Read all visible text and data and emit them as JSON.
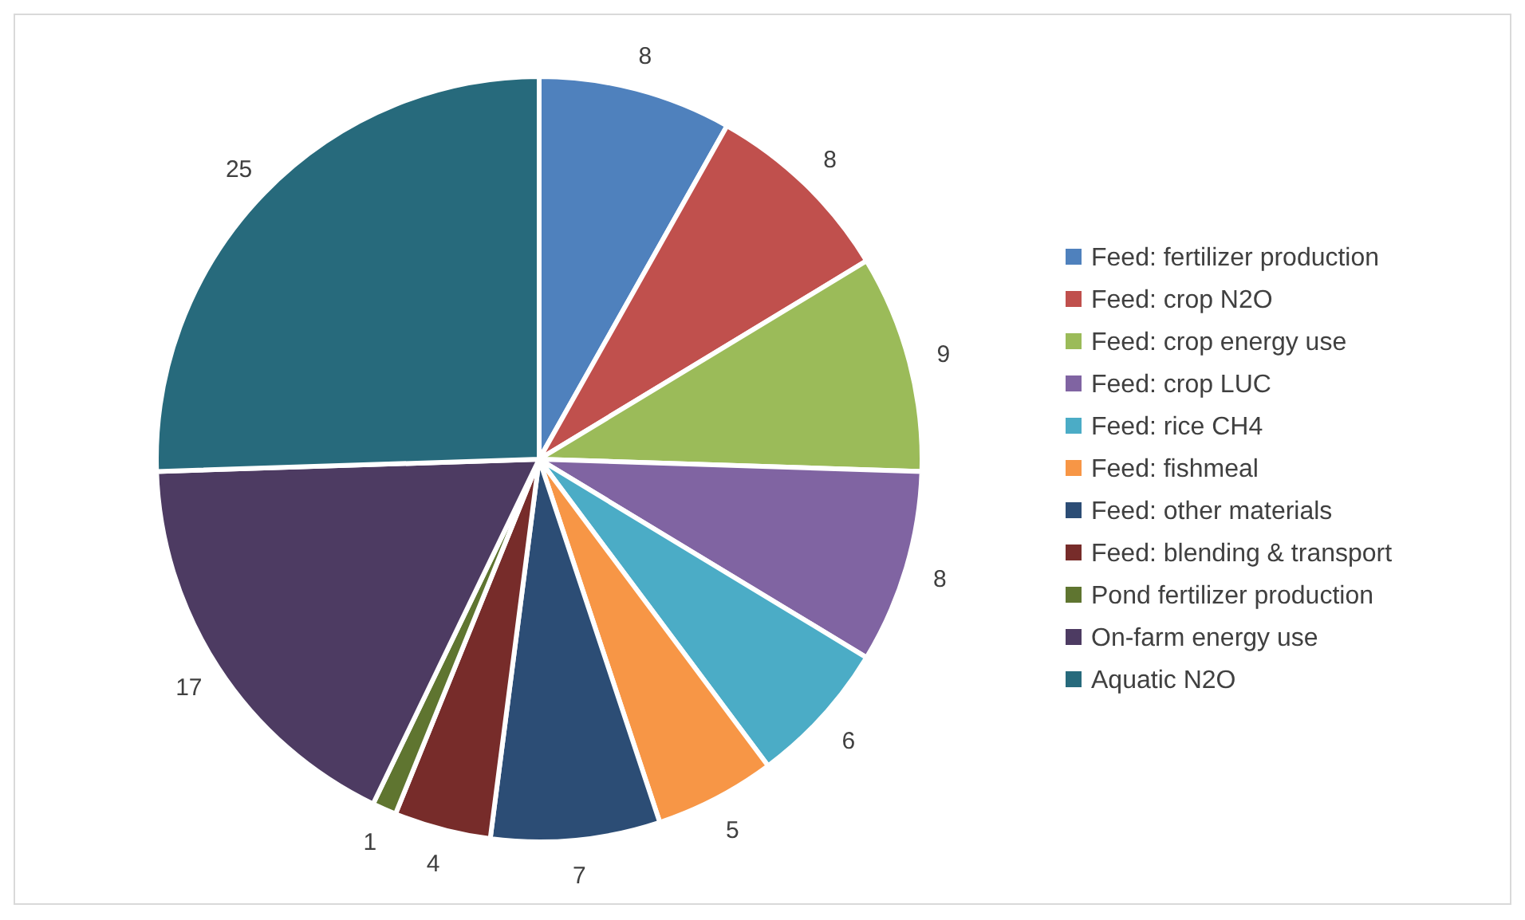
{
  "chart_data": {
    "type": "pie",
    "categories": [
      "Feed: fertilizer production",
      "Feed: crop N2O",
      "Feed: crop energy use",
      "Feed: crop LUC",
      "Feed: rice CH4",
      "Feed: fishmeal",
      "Feed: other materials",
      "Feed: blending & transport",
      "Pond fertilizer production",
      "On-farm energy use",
      "Aquatic N2O"
    ],
    "values": [
      8,
      8,
      9,
      8,
      6,
      5,
      7,
      4,
      1,
      17,
      25
    ],
    "colors": [
      "#4f81bd",
      "#c0504d",
      "#9bbb59",
      "#8064a2",
      "#4bacc6",
      "#f79646",
      "#2c4d75",
      "#772c2a",
      "#5f7530",
      "#4d3b62",
      "#276a7c"
    ],
    "data_labels": true,
    "legend": "right"
  }
}
